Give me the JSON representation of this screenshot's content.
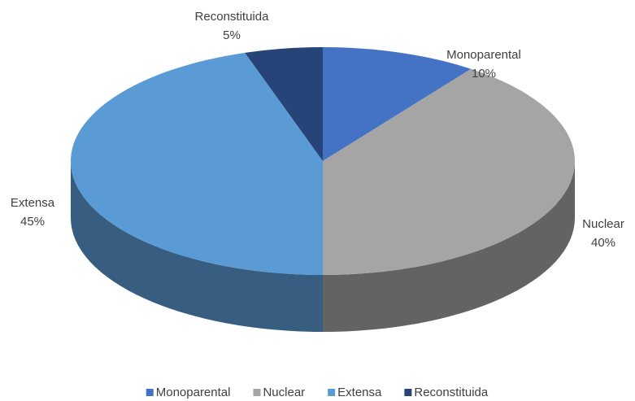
{
  "chart_data": {
    "type": "pie",
    "categories": [
      "Monoparental",
      "Nuclear",
      "Extensa",
      "Reconstituida"
    ],
    "values": [
      10,
      40,
      45,
      5
    ],
    "value_labels": [
      "10%",
      "40%",
      "45%",
      "5%"
    ],
    "colors": [
      "#4472c4",
      "#a5a5a5",
      "#5b9bd5",
      "#264478"
    ],
    "legend": "bottom"
  }
}
